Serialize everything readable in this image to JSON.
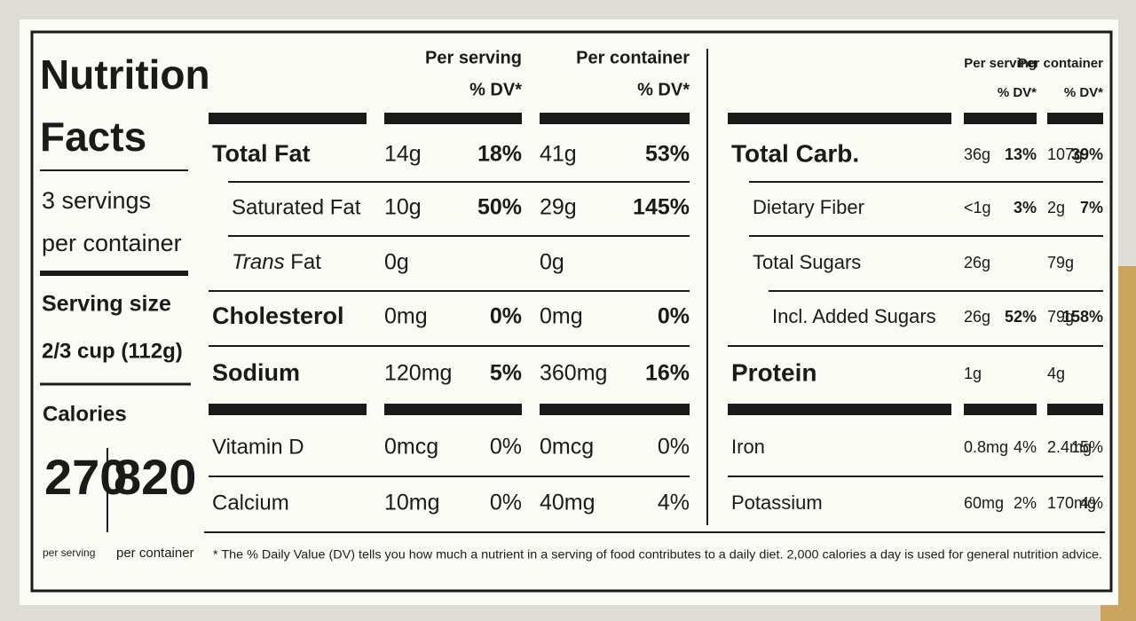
{
  "title_lines": [
    "Nutrition",
    "Facts"
  ],
  "servings": [
    "3 servings",
    "per container"
  ],
  "serving_size": {
    "label": "Serving size",
    "value": "2/3 cup (112g)"
  },
  "calories": {
    "label": "Calories",
    "per_serving": "270",
    "per_container": "820",
    "per_serving_label": "per serving",
    "per_container_label": "per container"
  },
  "left": {
    "headers": [
      [
        "Per serving",
        "% DV*"
      ],
      [
        "Per container",
        "% DV*"
      ]
    ],
    "rows": [
      {
        "name": "Total Fat",
        "serving": [
          "14g",
          "18%"
        ],
        "container": [
          "41g",
          "53%"
        ]
      },
      {
        "name": "Saturated Fat",
        "serving": [
          "10g",
          "50%"
        ],
        "container": [
          "29g",
          "145%"
        ]
      },
      {
        "name_italic": "Trans",
        "name": "Fat",
        "serving": [
          "0g"
        ],
        "container": [
          "0g"
        ]
      },
      {
        "name": "Cholesterol",
        "serving": [
          "0mg",
          "0%"
        ],
        "container": [
          "0mg",
          "0%"
        ]
      },
      {
        "name": "Sodium",
        "serving": [
          "120mg",
          "5%"
        ],
        "container": [
          "360mg",
          "16%"
        ]
      }
    ],
    "minerals": [
      {
        "name": "Vitamin D",
        "serving": [
          "0mcg",
          "0%"
        ],
        "container": [
          "0mcg",
          "0%"
        ]
      },
      {
        "name": "Calcium",
        "serving": [
          "10mg",
          "0%"
        ],
        "container": [
          "40mg",
          "4%"
        ]
      }
    ]
  },
  "right": {
    "headers": [
      [
        "Per serving",
        "% DV*"
      ],
      [
        "Per container",
        "% DV*"
      ]
    ],
    "rows": [
      {
        "name": "Total Carb.",
        "serving": [
          "36g",
          "13%"
        ],
        "container": [
          "107g",
          "39%"
        ]
      },
      {
        "name": "Dietary Fiber",
        "serving": [
          "<1g",
          "3%"
        ],
        "container": [
          "2g",
          "7%"
        ]
      },
      {
        "name": "Total Sugars",
        "serving": [
          "26g"
        ],
        "container": [
          "79g"
        ]
      },
      {
        "name": "Incl. Added Sugars",
        "serving": [
          "26g",
          "52%"
        ],
        "container": [
          "79g",
          "158%"
        ]
      },
      {
        "name": "Protein",
        "serving": [
          "1g"
        ],
        "container": [
          "4g"
        ]
      }
    ],
    "minerals": [
      {
        "name": "Iron",
        "serving": [
          "0.8mg",
          "4%"
        ],
        "container": [
          "2.4mg",
          "15%"
        ]
      },
      {
        "name": "Potassium",
        "serving": [
          "60mg",
          "2%"
        ],
        "container": [
          "170mg",
          "4%"
        ]
      }
    ]
  },
  "footnote": "* The % Daily Value (DV) tells you how much a nutrient in a serving of food contributes to a daily diet. 2,000 calories a day is used for general nutrition advice."
}
